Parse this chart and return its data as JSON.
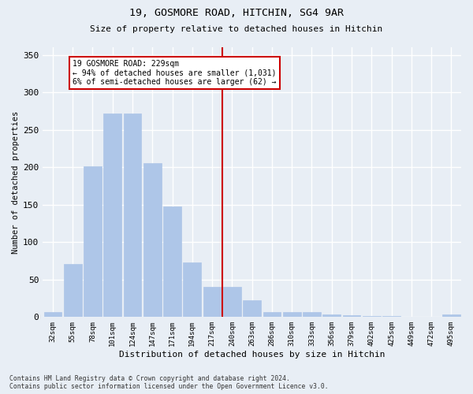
{
  "title1": "19, GOSMORE ROAD, HITCHIN, SG4 9AR",
  "title2": "Size of property relative to detached houses in Hitchin",
  "xlabel": "Distribution of detached houses by size in Hitchin",
  "ylabel": "Number of detached properties",
  "bar_labels": [
    "32sqm",
    "55sqm",
    "78sqm",
    "101sqm",
    "124sqm",
    "147sqm",
    "171sqm",
    "194sqm",
    "217sqm",
    "240sqm",
    "263sqm",
    "286sqm",
    "310sqm",
    "333sqm",
    "356sqm",
    "379sqm",
    "402sqm",
    "425sqm",
    "449sqm",
    "472sqm",
    "495sqm"
  ],
  "bar_values": [
    7,
    71,
    201,
    272,
    272,
    205,
    148,
    73,
    40,
    40,
    22,
    7,
    7,
    7,
    4,
    2,
    1,
    1,
    0,
    0,
    3
  ],
  "bar_color": "#aec6e8",
  "bar_edge_color": "#aec6e8",
  "annotation_text": "19 GOSMORE ROAD: 229sqm\n← 94% of detached houses are smaller (1,031)\n6% of semi-detached houses are larger (62) →",
  "annotation_box_color": "#ffffff",
  "annotation_box_edge_color": "#cc0000",
  "vline_color": "#cc0000",
  "background_color": "#e8eef5",
  "grid_color": "#ffffff",
  "footer1": "Contains HM Land Registry data © Crown copyright and database right 2024.",
  "footer2": "Contains public sector information licensed under the Open Government Licence v3.0.",
  "ylim": [
    0,
    360
  ],
  "yticks": [
    0,
    50,
    100,
    150,
    200,
    250,
    300,
    350
  ]
}
